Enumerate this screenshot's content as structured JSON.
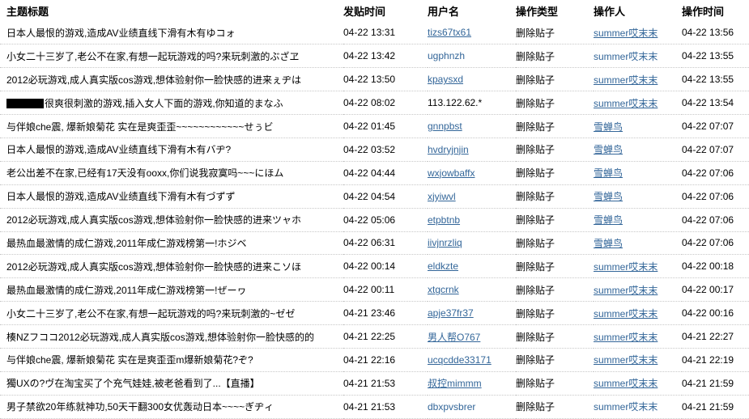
{
  "table": {
    "columns": [
      {
        "label": "主题标题"
      },
      {
        "label": "发贴时间"
      },
      {
        "label": "用户名"
      },
      {
        "label": "操作类型"
      },
      {
        "label": "操作人"
      },
      {
        "label": "操作时间"
      }
    ],
    "rows": [
      {
        "title": "日本人最恨的游戏,造成AV业绩直线下滑有木有ゆコォ",
        "censored": false,
        "post_time": "04-22 13:31",
        "username": "tizs67tx61",
        "username_is_link": true,
        "username_underlined": true,
        "action": "删除贴子",
        "operator": "summer哎末末",
        "operator_underlined": true,
        "op_time": "04-22 13:56"
      },
      {
        "title": "小女二十三岁了,老公不在家,有想一起玩游戏的吗?来玩刺激的ぶざヱ",
        "censored": false,
        "post_time": "04-22 13:42",
        "username": "ugphnzh",
        "username_is_link": true,
        "username_underlined": false,
        "action": "删除贴子",
        "operator": "summer哎末末",
        "operator_underlined": false,
        "op_time": "04-22 13:55"
      },
      {
        "title": "2012必玩游戏,成人真实版cos游戏,想体验射你一脸快感的进来ぇヂは",
        "censored": false,
        "post_time": "04-22 13:50",
        "username": "kpaysxd",
        "username_is_link": true,
        "username_underlined": true,
        "action": "删除贴子",
        "operator": "summer哎末末",
        "operator_underlined": true,
        "op_time": "04-22 13:55"
      },
      {
        "title": "很爽很刺激的游戏,插入女人下面的游戏,你知道的まなふ",
        "censored": true,
        "post_time": "04-22 08:02",
        "username": "113.122.62.*",
        "username_is_link": false,
        "username_underlined": false,
        "action": "删除贴子",
        "operator": "summer哎末末",
        "operator_underlined": true,
        "op_time": "04-22 13:54"
      },
      {
        "title": "与伴娘che震, 爆新娘菊花 实在是爽歪歪~~~~~~~~~~~~せぅビ",
        "censored": false,
        "post_time": "04-22 01:45",
        "username": "gnnpbst",
        "username_is_link": true,
        "username_underlined": true,
        "action": "删除贴子",
        "operator": "雪蝉鸟",
        "operator_underlined": true,
        "op_time": "04-22 07:07"
      },
      {
        "title": "日本人最恨的游戏,造成AV业绩直线下滑有木有バヂ?",
        "censored": false,
        "post_time": "04-22 03:52",
        "username": "hvdryjnjin",
        "username_is_link": true,
        "username_underlined": true,
        "action": "删除贴子",
        "operator": "雪蝉鸟",
        "operator_underlined": true,
        "op_time": "04-22 07:07"
      },
      {
        "title": "老公出差不在家,已经有17天没有ooxx,你们说我寂寞吗~~~にほム",
        "censored": false,
        "post_time": "04-22 04:44",
        "username": "wxjowbaffx",
        "username_is_link": true,
        "username_underlined": true,
        "action": "删除贴子",
        "operator": "雪蝉鸟",
        "operator_underlined": true,
        "op_time": "04-22 07:06"
      },
      {
        "title": "日本人最恨的游戏,造成AV业绩直线下滑有木有づずず",
        "censored": false,
        "post_time": "04-22 04:54",
        "username": "xjyiwvl",
        "username_is_link": true,
        "username_underlined": true,
        "action": "删除贴子",
        "operator": "雪蝉鸟",
        "operator_underlined": true,
        "op_time": "04-22 07:06"
      },
      {
        "title": "2012必玩游戏,成人真实版cos游戏,想体验射你一脸快感的进来ツャホ",
        "censored": false,
        "post_time": "04-22 05:06",
        "username": "etpbtnb",
        "username_is_link": true,
        "username_underlined": true,
        "action": "删除贴子",
        "operator": "雪蝉鸟",
        "operator_underlined": true,
        "op_time": "04-22 07:06"
      },
      {
        "title": "最热血最激情的成仁游戏,2011年成仁游戏榜第一!ホジベ",
        "censored": false,
        "post_time": "04-22 06:31",
        "username": "iivjnrzliq",
        "username_is_link": true,
        "username_underlined": true,
        "action": "删除贴子",
        "operator": "雪蝉鸟",
        "operator_underlined": true,
        "op_time": "04-22 07:06"
      },
      {
        "title": "2012必玩游戏,成人真实版cos游戏,想体验射你一脸快感的进来こソほ",
        "censored": false,
        "post_time": "04-22 00:14",
        "username": "eldkzte",
        "username_is_link": true,
        "username_underlined": true,
        "action": "删除贴子",
        "operator": "summer哎末末",
        "operator_underlined": true,
        "op_time": "04-22 00:18"
      },
      {
        "title": "最热血最激情的成仁游戏,2011年成仁游戏榜第一!ぜーヮ",
        "censored": false,
        "post_time": "04-22 00:11",
        "username": "xtgcrnk",
        "username_is_link": true,
        "username_underlined": true,
        "action": "删除贴子",
        "operator": "summer哎末末",
        "operator_underlined": true,
        "op_time": "04-22 00:17"
      },
      {
        "title": "小女二十三岁了,老公不在家,有想一起玩游戏的吗?来玩刺激的~ゼゼ",
        "censored": false,
        "post_time": "04-21 23:46",
        "username": "apje37fr37",
        "username_is_link": true,
        "username_underlined": true,
        "action": "删除贴子",
        "operator": "summer哎末末",
        "operator_underlined": true,
        "op_time": "04-22 00:16"
      },
      {
        "title": "楱NZフココ2012必玩游戏,成人真实版cos游戏,想体验射你一脸快感的的",
        "censored": false,
        "post_time": "04-21 22:25",
        "username": "男人帮O767",
        "username_is_link": true,
        "username_underlined": true,
        "action": "删除贴子",
        "operator": "summer哎末末",
        "operator_underlined": true,
        "op_time": "04-21 22:27"
      },
      {
        "title": "与伴娘che震, 爆新娘菊花 实在是爽歪歪m爆新娘菊花?ぞ?",
        "censored": false,
        "post_time": "04-21 22:16",
        "username": "ucqcdde33171",
        "username_is_link": true,
        "username_underlined": true,
        "action": "删除贴子",
        "operator": "summer哎末末",
        "operator_underlined": true,
        "op_time": "04-21 22:19"
      },
      {
        "title": "獨UXの?ヴ在淘宝买了个充气娃娃,被老爸看到了...【直播】",
        "censored": false,
        "post_time": "04-21 21:53",
        "username": "叔控mimmm",
        "username_is_link": true,
        "username_underlined": true,
        "action": "删除贴子",
        "operator": "summer哎末末",
        "operator_underlined": true,
        "op_time": "04-21 21:59"
      },
      {
        "title": "男子禁欲20年练就神功,50天干翻300女优轰动日本~~~~ぎヂィ",
        "censored": false,
        "post_time": "04-21 21:53",
        "username": "dbxpvsbrer",
        "username_is_link": true,
        "username_underlined": false,
        "action": "删除贴子",
        "operator": "summer哎末末",
        "operator_underlined": false,
        "op_time": "04-21 21:59"
      }
    ]
  },
  "colors": {
    "link": "#336699",
    "text": "#000000",
    "row_separator": "#c8c8c8",
    "censor_block": "#000000"
  }
}
